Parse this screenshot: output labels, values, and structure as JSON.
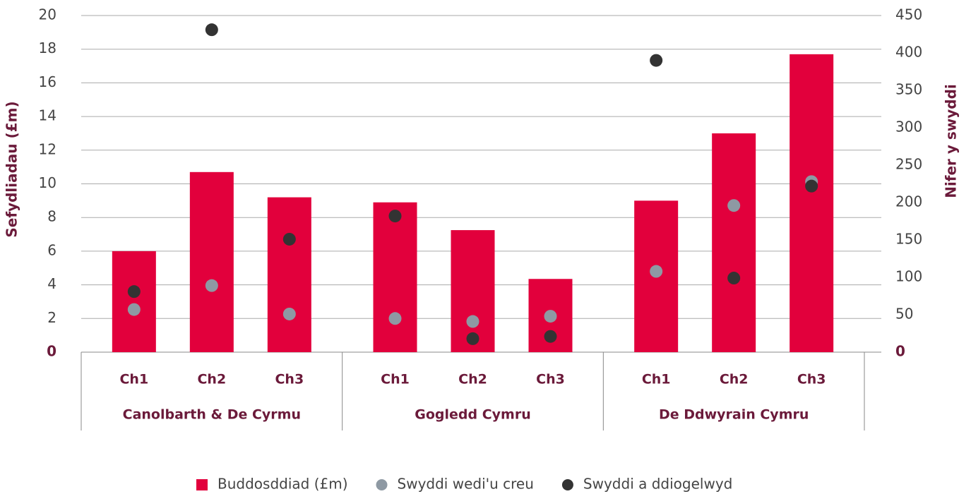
{
  "chart_data": {
    "type": "bar",
    "categories": [
      "Ch1",
      "Ch2",
      "Ch3",
      "Ch1",
      "Ch2",
      "Ch3",
      "Ch1",
      "Ch2",
      "Ch3"
    ],
    "groups": [
      "Canolbarth & De Cyrmu",
      "Gogledd Cymru",
      "De Ddwyrain Cymru"
    ],
    "y_label": "Sefydliadau (£m)",
    "y2_label": "Nifer y swyddi",
    "ylim": [
      0,
      20
    ],
    "yticks": [
      0,
      2,
      4,
      6,
      8,
      10,
      12,
      14,
      16,
      18,
      20
    ],
    "y2lim": [
      0,
      450
    ],
    "y2ticks": [
      0,
      50,
      100,
      150,
      200,
      250,
      300,
      350,
      400,
      450
    ],
    "grid": true,
    "legend": "bottom",
    "series": [
      {
        "name": "Buddosddiad (£m)",
        "type": "bar",
        "color": "#e2003c",
        "values": [
          6.0,
          10.7,
          9.2,
          8.9,
          7.25,
          4.35,
          9.0,
          13.0,
          17.7
        ]
      },
      {
        "name": "Swyddi wedi'u creu",
        "type": "scatter",
        "axis": "y2",
        "color": "#8e99a3",
        "values": [
          57,
          89,
          51,
          45,
          41,
          48,
          108,
          196,
          228
        ]
      },
      {
        "name": "Swyddi a ddiogelwyd",
        "type": "scatter",
        "axis": "y2",
        "color": "#333333",
        "values": [
          81,
          431,
          151,
          182,
          18,
          21,
          390,
          99,
          222
        ]
      }
    ]
  }
}
